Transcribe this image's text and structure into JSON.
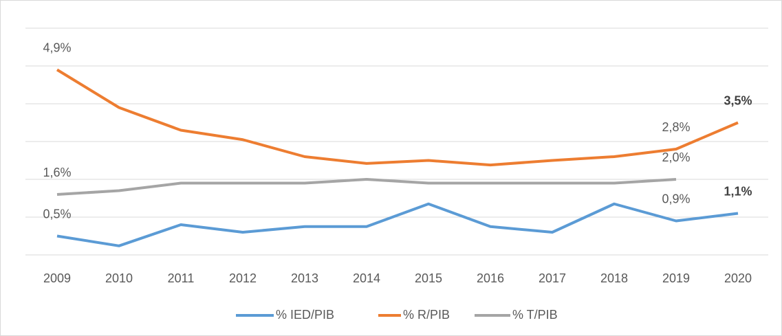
{
  "chart_data": {
    "type": "line",
    "categories": [
      "2009",
      "2010",
      "2011",
      "2012",
      "2013",
      "2014",
      "2015",
      "2016",
      "2017",
      "2018",
      "2019",
      "2020"
    ],
    "series": [
      {
        "name": "% IED/PIB",
        "color": "#5b9bd5",
        "values": [
          0.5,
          0.24,
          0.8,
          0.6,
          0.75,
          0.75,
          1.35,
          0.75,
          0.6,
          1.35,
          0.9,
          1.1
        ],
        "value_labels": [
          "0,5%",
          null,
          null,
          null,
          null,
          null,
          null,
          null,
          null,
          null,
          "0,9%",
          "1,1%"
        ]
      },
      {
        "name": "% R/PIB",
        "color": "#ed7d31",
        "values": [
          4.9,
          3.9,
          3.3,
          3.05,
          2.6,
          2.42,
          2.5,
          2.38,
          2.5,
          2.6,
          2.8,
          3.5
        ],
        "value_labels": [
          "4,9%",
          null,
          null,
          null,
          null,
          null,
          null,
          null,
          null,
          null,
          "2,8%",
          "3,5%"
        ]
      },
      {
        "name": "% T/PIB",
        "color": "#a5a5a5",
        "values": [
          1.6,
          1.7,
          1.9,
          1.9,
          1.9,
          2.0,
          1.9,
          1.9,
          1.9,
          1.9,
          2.0,
          null
        ],
        "value_labels": [
          "1,6%",
          null,
          null,
          null,
          null,
          null,
          null,
          null,
          null,
          null,
          "2,0%",
          null
        ]
      }
    ],
    "ylim": [
      0,
      6
    ],
    "yticks": [
      0,
      1,
      2,
      3,
      4,
      5,
      6
    ],
    "grid": true,
    "legend": "bottom"
  }
}
